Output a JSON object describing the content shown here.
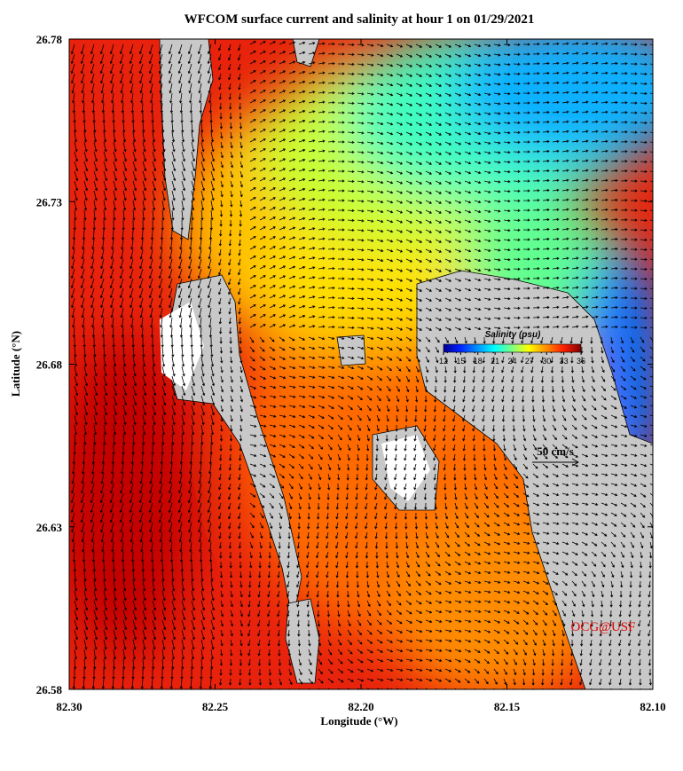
{
  "chart_data": {
    "type": "map",
    "title": "WFCOM surface current and salinity at hour 1 on 01/29/2021",
    "x_label": "Longitude (°W)",
    "y_label": "Latitude (°N)",
    "xlim": [
      82.3,
      82.1
    ],
    "ylim": [
      26.58,
      26.78
    ],
    "xticks": [
      {
        "value": 82.3,
        "label": "82.30"
      },
      82.25,
      {
        "value": 82.2,
        "label": "82.20"
      },
      82.15,
      {
        "value": 82.1,
        "label": "82.10"
      }
    ],
    "yticks": [
      26.58,
      26.63,
      26.68,
      26.73,
      26.78
    ],
    "colorbar": {
      "label": "Salinity (psu)",
      "clim": [
        12,
        36
      ],
      "ticks": [
        12,
        15,
        18,
        21,
        24,
        27,
        30,
        33,
        36
      ]
    },
    "scale_arrow": "50 cm/s",
    "credit": "OCG@USF"
  }
}
